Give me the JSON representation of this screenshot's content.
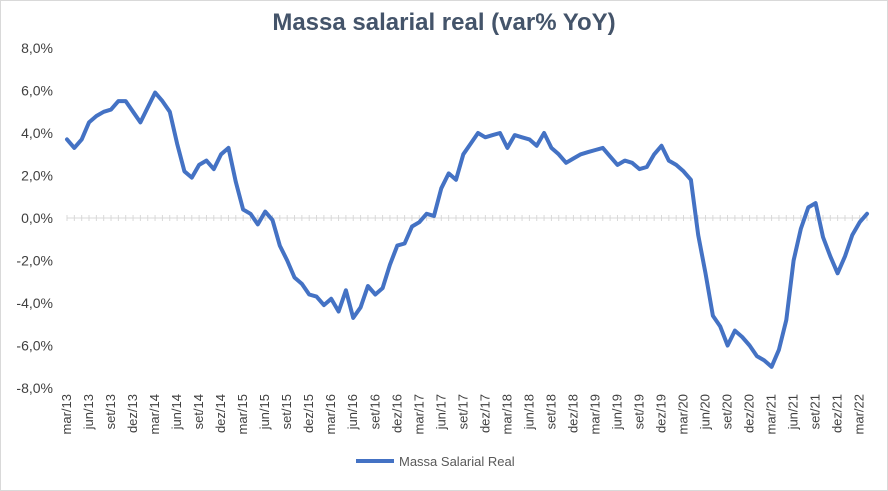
{
  "chart_data": {
    "type": "line",
    "title": "Massa salarial real (var% YoY)",
    "xlabel": "",
    "ylabel": "",
    "ylim": [
      -8,
      8
    ],
    "y_ticks": [
      8,
      6,
      4,
      2,
      0,
      -2,
      -4,
      -6,
      -8
    ],
    "y_tick_labels": [
      "8,0%",
      "6,0%",
      "4,0%",
      "2,0%",
      "0,0%",
      "-2,0%",
      "-4,0%",
      "-6,0%",
      "-8,0%"
    ],
    "x_tick_labels": [
      "mar/13",
      "jun/13",
      "set/13",
      "dez/13",
      "mar/14",
      "jun/14",
      "set/14",
      "dez/14",
      "mar/15",
      "jun/15",
      "set/15",
      "dez/15",
      "mar/16",
      "jun/16",
      "set/16",
      "dez/16",
      "mar/17",
      "jun/17",
      "set/17",
      "dez/17",
      "mar/18",
      "jun/18",
      "set/18",
      "dez/18",
      "mar/19",
      "jun/19",
      "set/19",
      "dez/19",
      "mar/20",
      "jun/20",
      "set/20",
      "dez/20",
      "mar/21",
      "jun/21",
      "set/21",
      "dez/21",
      "mar/22"
    ],
    "legend": "bottom",
    "grid": false,
    "color": "#4472c4",
    "series": [
      {
        "name": "Massa Salarial Real",
        "values": [
          3.7,
          3.3,
          3.7,
          4.5,
          4.8,
          5.0,
          5.1,
          5.5,
          5.5,
          5.0,
          4.5,
          5.2,
          5.9,
          5.5,
          5.0,
          3.5,
          2.2,
          1.9,
          2.5,
          2.7,
          2.3,
          3.0,
          3.3,
          1.7,
          0.4,
          0.2,
          -0.3,
          0.3,
          -0.1,
          -1.3,
          -2.0,
          -2.8,
          -3.1,
          -3.6,
          -3.7,
          -4.1,
          -3.8,
          -4.4,
          -3.4,
          -4.7,
          -4.2,
          -3.2,
          -3.6,
          -3.3,
          -2.2,
          -1.3,
          -1.2,
          -0.4,
          -0.2,
          0.2,
          0.1,
          1.4,
          2.1,
          1.8,
          3.0,
          3.5,
          4.0,
          3.8,
          3.9,
          4.0,
          3.3,
          3.9,
          3.8,
          3.7,
          3.4,
          4.0,
          3.3,
          3.0,
          2.6,
          2.8,
          3.0,
          3.1,
          3.2,
          3.3,
          2.9,
          2.5,
          2.7,
          2.6,
          2.3,
          2.4,
          3.0,
          3.4,
          2.7,
          2.5,
          2.2,
          1.8,
          -0.8,
          -2.6,
          -4.6,
          -5.1,
          -6.0,
          -5.3,
          -5.6,
          -6.0,
          -6.5,
          -6.7,
          -7.0,
          -6.2,
          -4.8,
          -2.0,
          -0.5,
          0.5,
          0.7,
          -0.9,
          -1.8,
          -2.6,
          -1.8,
          -0.8,
          -0.2,
          0.2
        ]
      }
    ]
  }
}
